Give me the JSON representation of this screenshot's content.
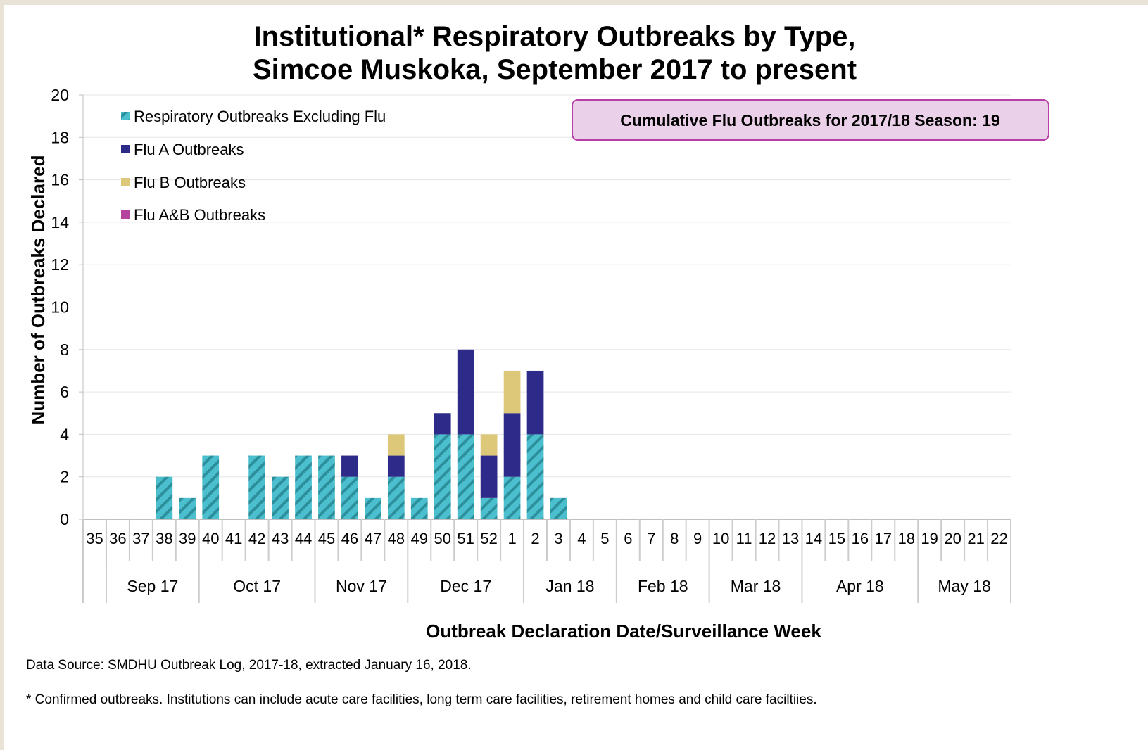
{
  "chart_data": {
    "type": "bar",
    "stacked": true,
    "title_lines": [
      "Institutional* Respiratory Outbreaks by Type,",
      "Simcoe Muskoka, September 2017 to present"
    ],
    "xlabel": "Outbreak Declaration Date/Surveillance Week",
    "ylabel": "Number of Outbreaks Declared",
    "ylim": [
      0,
      20
    ],
    "yticks": [
      0,
      2,
      4,
      6,
      8,
      10,
      12,
      14,
      16,
      18,
      20
    ],
    "grid": true,
    "legend_position": "top-left",
    "categories": [
      "35",
      "36",
      "37",
      "38",
      "39",
      "40",
      "41",
      "42",
      "43",
      "44",
      "45",
      "46",
      "47",
      "48",
      "49",
      "50",
      "51",
      "52",
      "1",
      "2",
      "3",
      "4",
      "5",
      "6",
      "7",
      "8",
      "9",
      "10",
      "11",
      "12",
      "13",
      "14",
      "15",
      "16",
      "17",
      "18",
      "19",
      "20",
      "21",
      "22"
    ],
    "months": [
      {
        "label": "Sep 17",
        "start": 0,
        "end": 4
      },
      {
        "label": "Oct 17",
        "start": 5,
        "end": 9
      },
      {
        "label": "Nov 17",
        "start": 10,
        "end": 13
      },
      {
        "label": "Dec 17",
        "start": 14,
        "end": 18
      },
      {
        "label": "Jan 18",
        "start": 19,
        "end": 22
      },
      {
        "label": "Feb 18",
        "start": 23,
        "end": 26
      },
      {
        "label": "Mar 18",
        "start": 27,
        "end": 30
      },
      {
        "label": "Apr 18",
        "start": 31,
        "end": 35
      },
      {
        "label": "May 18",
        "start": 36,
        "end": 39
      }
    ],
    "series": [
      {
        "name": "Respiratory Outbreaks Excluding Flu",
        "color": "#4bbfce",
        "pattern": "hatch",
        "values": [
          0,
          0,
          0,
          2,
          1,
          3,
          0,
          3,
          2,
          3,
          3,
          2,
          1,
          2,
          1,
          4,
          4,
          1,
          2,
          4,
          1,
          0,
          0,
          0,
          0,
          0,
          0,
          0,
          0,
          0,
          0,
          0,
          0,
          0,
          0,
          0,
          0,
          0,
          0,
          0
        ]
      },
      {
        "name": "Flu A Outbreaks",
        "color": "#2e2a8a",
        "values": [
          0,
          0,
          0,
          0,
          0,
          0,
          0,
          0,
          0,
          0,
          0,
          1,
          0,
          1,
          0,
          1,
          4,
          2,
          3,
          3,
          0,
          0,
          0,
          0,
          0,
          0,
          0,
          0,
          0,
          0,
          0,
          0,
          0,
          0,
          0,
          0,
          0,
          0,
          0,
          0
        ]
      },
      {
        "name": "Flu B Outbreaks",
        "color": "#ddc87a",
        "values": [
          0,
          0,
          0,
          0,
          0,
          0,
          0,
          0,
          0,
          0,
          0,
          0,
          0,
          1,
          0,
          0,
          0,
          1,
          2,
          0,
          0,
          0,
          0,
          0,
          0,
          0,
          0,
          0,
          0,
          0,
          0,
          0,
          0,
          0,
          0,
          0,
          0,
          0,
          0,
          0
        ]
      },
      {
        "name": "Flu A&B Outbreaks",
        "color": "#b4449e",
        "values": [
          0,
          0,
          0,
          0,
          0,
          0,
          0,
          0,
          0,
          0,
          0,
          0,
          0,
          0,
          0,
          0,
          0,
          0,
          0,
          0,
          0,
          0,
          0,
          0,
          0,
          0,
          0,
          0,
          0,
          0,
          0,
          0,
          0,
          0,
          0,
          0,
          0,
          0,
          0,
          0
        ]
      }
    ],
    "annotation": "Cumulative Flu Outbreaks for 2017/18 Season:  19",
    "annotation_colors": {
      "fill": "#ebd0ea",
      "border": "#b63fa5"
    }
  },
  "footer": {
    "source": "Data Source:  SMDHU Outbreak Log, 2017-18, extracted January 16, 2018.",
    "note": "* Confirmed outbreaks. Institutions can include acute care facilities, long term care facilities, retirement homes and child care faciltiies."
  }
}
